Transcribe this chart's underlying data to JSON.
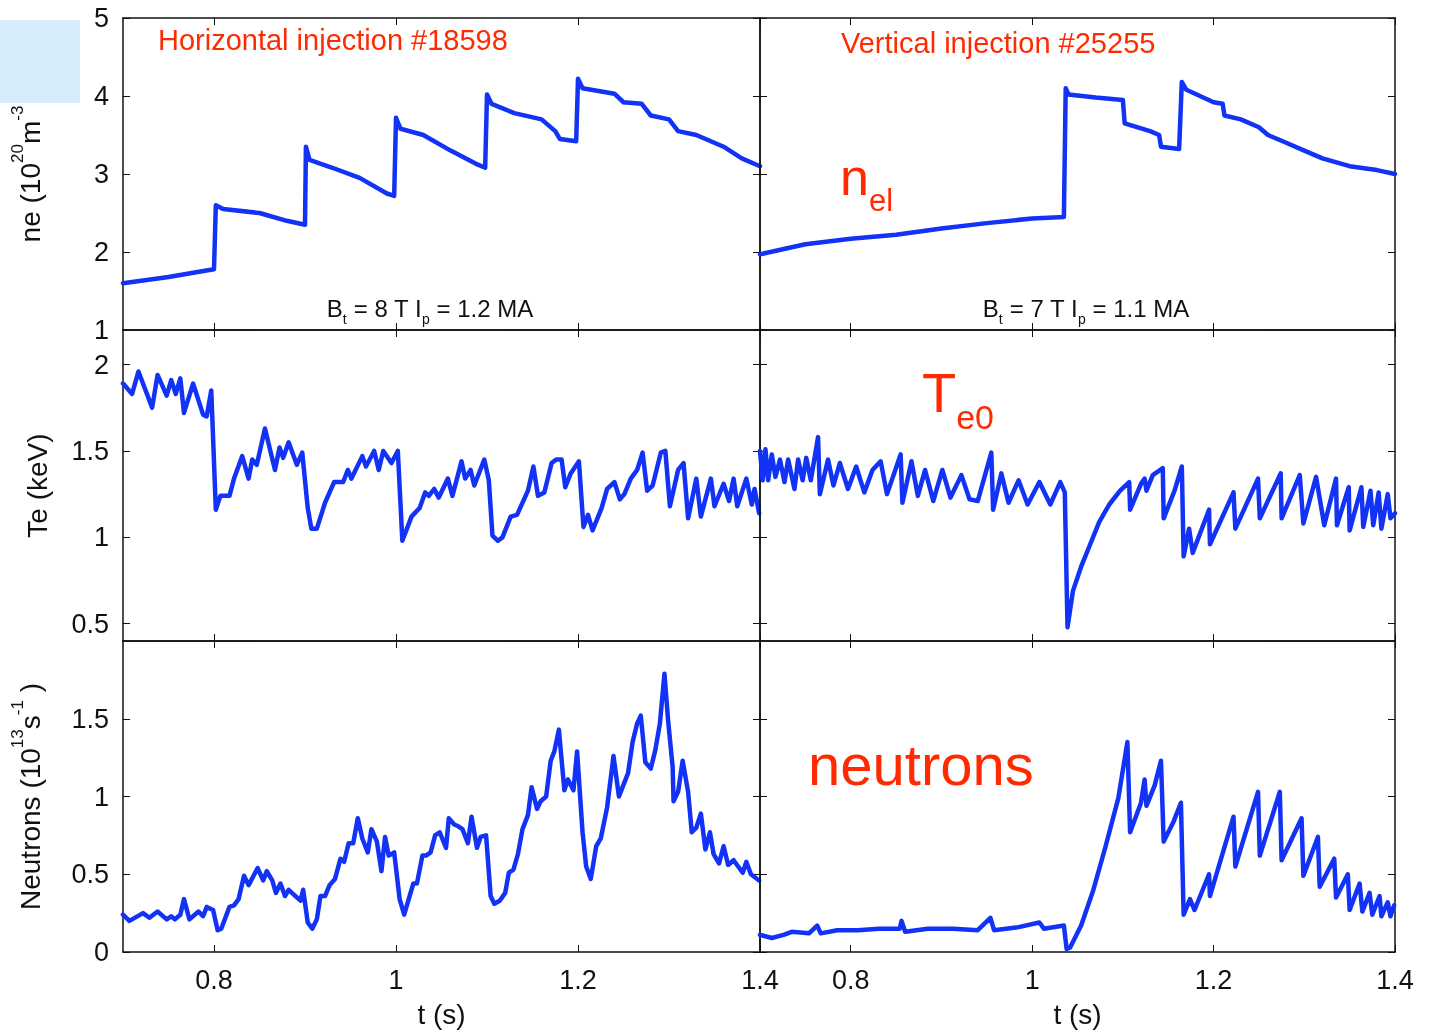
{
  "chart_data": [
    {
      "type": "line",
      "title": "Horizontal injection #18598",
      "ylabel": "ne (10$^{20}$m$^{-3}$",
      "annotations": [
        "B$_{t}$ = 8 T I$_{p}$ = 1.2 MA"
      ],
      "xlim": [
        0.7,
        1.4
      ],
      "xticks": [
        0.8,
        1,
        1.2,
        1.4
      ],
      "ylim": [
        1,
        5
      ],
      "yticks": [
        1,
        2,
        3,
        4,
        5
      ],
      "tick_labels": "y",
      "marker": "none",
      "line_style": "solid",
      "series": [
        {
          "color": "#1232f5",
          "x": [
            0.7,
            0.75,
            0.79,
            0.8,
            0.802,
            0.81,
            0.85,
            0.88,
            0.9,
            0.901,
            0.905,
            0.93,
            0.96,
            0.99,
            0.998,
            1.0,
            1.005,
            1.03,
            1.06,
            1.09,
            1.098,
            1.1,
            1.105,
            1.13,
            1.16,
            1.175,
            1.18,
            1.198,
            1.2,
            1.205,
            1.24,
            1.25,
            1.27,
            1.28,
            1.3,
            1.31,
            1.33,
            1.36,
            1.38,
            1.4
          ],
          "values": [
            1.6,
            1.68,
            1.76,
            1.78,
            2.6,
            2.55,
            2.5,
            2.4,
            2.35,
            3.35,
            3.18,
            3.08,
            2.95,
            2.75,
            2.72,
            3.72,
            3.58,
            3.5,
            3.3,
            3.12,
            3.08,
            4.02,
            3.9,
            3.78,
            3.7,
            3.55,
            3.45,
            3.42,
            4.22,
            4.1,
            4.03,
            3.92,
            3.9,
            3.75,
            3.7,
            3.55,
            3.5,
            3.35,
            3.2,
            3.1
          ]
        }
      ]
    },
    {
      "type": "line",
      "title": "Vertical injection #25255",
      "annotations": [
        "n$_{el}$",
        "B$_{t}$ = 7 T I$_{p}$ = 1.1 MA"
      ],
      "xlim": [
        0.7,
        1.4
      ],
      "xticks": [
        0.8,
        1,
        1.2,
        1.4
      ],
      "ylim": [
        1,
        5
      ],
      "yticks": [
        1,
        2,
        3,
        4,
        5
      ],
      "tick_labels": false,
      "marker": "none",
      "line_style": "solid",
      "series": [
        {
          "color": "#1232f5",
          "x": [
            0.7,
            0.75,
            0.8,
            0.85,
            0.9,
            0.95,
            1.0,
            1.035,
            1.037,
            1.04,
            1.07,
            1.1,
            1.102,
            1.13,
            1.14,
            1.142,
            1.162,
            1.165,
            1.17,
            1.2,
            1.21,
            1.212,
            1.23,
            1.25,
            1.26,
            1.28,
            1.3,
            1.32,
            1.35,
            1.38,
            1.4
          ],
          "values": [
            1.97,
            2.1,
            2.17,
            2.22,
            2.3,
            2.37,
            2.43,
            2.45,
            4.1,
            4.02,
            3.98,
            3.95,
            3.65,
            3.55,
            3.5,
            3.35,
            3.32,
            4.18,
            4.08,
            3.92,
            3.9,
            3.75,
            3.7,
            3.6,
            3.5,
            3.4,
            3.3,
            3.2,
            3.1,
            3.05,
            3.0
          ]
        }
      ]
    },
    {
      "type": "line",
      "ylabel": "Te (keV)",
      "xlim": [
        0.7,
        1.4
      ],
      "xticks": [
        0.8,
        1,
        1.2,
        1.4
      ],
      "ylim": [
        0.4,
        2.2
      ],
      "yticks": [
        0.5,
        1,
        1.5,
        2
      ],
      "tick_labels": "y",
      "marker": "none",
      "line_style": "solid",
      "series": [
        {
          "color": "#1232f5",
          "x": [
            0.7,
            0.71,
            0.717,
            0.732,
            0.738,
            0.748,
            0.753,
            0.758,
            0.763,
            0.767,
            0.777,
            0.788,
            0.792,
            0.797,
            0.802,
            0.807,
            0.817,
            0.822,
            0.831,
            0.838,
            0.842,
            0.847,
            0.856,
            0.867,
            0.872,
            0.876,
            0.882,
            0.891,
            0.897,
            0.903,
            0.907,
            0.913,
            0.922,
            0.932,
            0.942,
            0.947,
            0.951,
            0.963,
            0.967,
            0.976,
            0.981,
            0.986,
            0.995,
            1.002,
            1.007,
            1.017,
            1.026,
            1.032,
            1.036,
            1.042,
            1.047,
            1.057,
            1.062,
            1.072,
            1.076,
            1.082,
            1.086,
            1.097,
            1.102,
            1.106,
            1.112,
            1.117,
            1.126,
            1.133,
            1.145,
            1.151,
            1.156,
            1.163,
            1.171,
            1.176,
            1.182,
            1.186,
            1.192,
            1.201,
            1.206,
            1.211,
            1.216,
            1.226,
            1.232,
            1.24,
            1.246,
            1.251,
            1.258,
            1.265,
            1.271,
            1.276,
            1.282,
            1.291,
            1.296,
            1.301,
            1.31,
            1.316,
            1.321,
            1.33,
            1.335,
            1.346,
            1.35,
            1.36,
            1.366,
            1.371,
            1.375,
            1.385,
            1.391,
            1.394,
            1.399
          ],
          "values": [
            1.89,
            1.83,
            1.96,
            1.75,
            1.94,
            1.82,
            1.91,
            1.83,
            1.92,
            1.72,
            1.89,
            1.71,
            1.7,
            1.85,
            1.16,
            1.24,
            1.24,
            1.34,
            1.47,
            1.34,
            1.45,
            1.42,
            1.63,
            1.39,
            1.52,
            1.46,
            1.55,
            1.42,
            1.49,
            1.17,
            1.05,
            1.05,
            1.2,
            1.32,
            1.32,
            1.39,
            1.34,
            1.47,
            1.41,
            1.5,
            1.39,
            1.5,
            1.43,
            1.5,
            0.98,
            1.12,
            1.17,
            1.26,
            1.24,
            1.28,
            1.23,
            1.34,
            1.24,
            1.44,
            1.34,
            1.39,
            1.3,
            1.45,
            1.33,
            1.01,
            0.98,
            1.0,
            1.12,
            1.13,
            1.27,
            1.41,
            1.24,
            1.26,
            1.43,
            1.45,
            1.45,
            1.29,
            1.37,
            1.44,
            1.06,
            1.13,
            1.04,
            1.17,
            1.28,
            1.32,
            1.22,
            1.25,
            1.34,
            1.39,
            1.49,
            1.27,
            1.3,
            1.49,
            1.5,
            1.18,
            1.39,
            1.43,
            1.11,
            1.34,
            1.12,
            1.34,
            1.18,
            1.31,
            1.21,
            1.34,
            1.18,
            1.34,
            1.19,
            1.28,
            1.14
          ]
        }
      ]
    },
    {
      "type": "line",
      "annotations": [
        "T$_{e0}$"
      ],
      "xlim": [
        0.7,
        1.4
      ],
      "xticks": [
        0.8,
        1,
        1.2,
        1.4
      ],
      "ylim": [
        0.4,
        2.2
      ],
      "yticks": [
        0.5,
        1,
        1.5,
        2
      ],
      "tick_labels": false,
      "marker": "none",
      "line_style": "solid",
      "series": [
        {
          "color": "#1232f5",
          "x": [
            0.7,
            0.703,
            0.706,
            0.709,
            0.713,
            0.717,
            0.722,
            0.727,
            0.731,
            0.738,
            0.742,
            0.747,
            0.751,
            0.756,
            0.764,
            0.766,
            0.775,
            0.781,
            0.788,
            0.797,
            0.806,
            0.815,
            0.824,
            0.833,
            0.84,
            0.855,
            0.857,
            0.867,
            0.874,
            0.882,
            0.891,
            0.901,
            0.91,
            0.922,
            0.931,
            0.94,
            0.955,
            0.957,
            0.966,
            0.974,
            0.985,
            0.995,
            1.008,
            1.02,
            1.031,
            1.036,
            1.039,
            1.045,
            1.054,
            1.064,
            1.074,
            1.085,
            1.097,
            1.107,
            1.108,
            1.12,
            1.124,
            1.126,
            1.133,
            1.144,
            1.145,
            1.157,
            1.165,
            1.167,
            1.173,
            1.177,
            1.195,
            1.196,
            1.222,
            1.224,
            1.249,
            1.251,
            1.274,
            1.275,
            1.295,
            1.299,
            1.313,
            1.322,
            1.335,
            1.336,
            1.349,
            1.35,
            1.363,
            1.365,
            1.373,
            1.376,
            1.382,
            1.385,
            1.392,
            1.395,
            1.4
          ],
          "values": [
            1.5,
            1.33,
            1.51,
            1.33,
            1.48,
            1.35,
            1.45,
            1.32,
            1.45,
            1.28,
            1.45,
            1.33,
            1.46,
            1.33,
            1.58,
            1.25,
            1.45,
            1.3,
            1.43,
            1.28,
            1.41,
            1.26,
            1.39,
            1.44,
            1.25,
            1.48,
            1.2,
            1.44,
            1.24,
            1.39,
            1.21,
            1.39,
            1.23,
            1.36,
            1.22,
            1.21,
            1.49,
            1.16,
            1.37,
            1.2,
            1.33,
            1.19,
            1.32,
            1.19,
            1.32,
            1.26,
            0.48,
            0.69,
            0.83,
            0.96,
            1.09,
            1.19,
            1.27,
            1.32,
            1.16,
            1.31,
            1.34,
            1.27,
            1.36,
            1.4,
            1.11,
            1.27,
            1.41,
            0.89,
            1.05,
            0.91,
            1.16,
            0.96,
            1.26,
            1.05,
            1.34,
            1.11,
            1.37,
            1.11,
            1.36,
            1.08,
            1.35,
            1.07,
            1.34,
            1.07,
            1.29,
            1.04,
            1.29,
            1.06,
            1.27,
            1.07,
            1.26,
            1.05,
            1.25,
            1.11,
            1.14
          ]
        }
      ]
    },
    {
      "type": "line",
      "xlabel": "t (s)",
      "ylabel": "Neutrons (10$^{13}$s$^{-1}$ )",
      "xlim": [
        0.7,
        1.4
      ],
      "xticks": [
        0.8,
        1,
        1.2,
        1.4
      ],
      "ylim": [
        0,
        2
      ],
      "yticks": [
        0,
        0.5,
        1,
        1.5
      ],
      "marker": "none",
      "line_style": "solid",
      "series": [
        {
          "color": "#1232f5",
          "x": [
            0.7,
            0.707,
            0.722,
            0.729,
            0.738,
            0.748,
            0.753,
            0.757,
            0.763,
            0.767,
            0.773,
            0.783,
            0.788,
            0.792,
            0.799,
            0.804,
            0.808,
            0.817,
            0.822,
            0.827,
            0.833,
            0.838,
            0.848,
            0.854,
            0.858,
            0.864,
            0.868,
            0.873,
            0.878,
            0.882,
            0.895,
            0.898,
            0.903,
            0.908,
            0.913,
            0.917,
            0.922,
            0.927,
            0.933,
            0.939,
            0.943,
            0.948,
            0.953,
            0.958,
            0.963,
            0.969,
            0.973,
            0.979,
            0.984,
            0.988,
            0.992,
            0.998,
            1.004,
            1.009,
            1.014,
            1.019,
            1.023,
            1.029,
            1.033,
            1.038,
            1.043,
            1.048,
            1.055,
            1.058,
            1.064,
            1.068,
            1.073,
            1.079,
            1.083,
            1.089,
            1.093,
            1.099,
            1.104,
            1.108,
            1.114,
            1.12,
            1.124,
            1.129,
            1.134,
            1.139,
            1.145,
            1.149,
            1.155,
            1.159,
            1.165,
            1.17,
            1.174,
            1.179,
            1.185,
            1.189,
            1.195,
            1.199,
            1.205,
            1.209,
            1.214,
            1.22,
            1.225,
            1.232,
            1.239,
            1.245,
            1.249,
            1.255,
            1.26,
            1.265,
            1.269,
            1.274,
            1.28,
            1.285,
            1.29,
            1.295,
            1.299,
            1.304,
            1.305,
            1.31,
            1.315,
            1.321,
            1.325,
            1.33,
            1.335,
            1.34,
            1.345,
            1.349,
            1.355,
            1.36,
            1.365,
            1.371,
            1.376,
            1.381,
            1.385,
            1.39,
            1.399
          ],
          "values": [
            0.24,
            0.2,
            0.25,
            0.22,
            0.26,
            0.21,
            0.23,
            0.21,
            0.24,
            0.34,
            0.21,
            0.26,
            0.23,
            0.29,
            0.27,
            0.14,
            0.15,
            0.29,
            0.3,
            0.34,
            0.49,
            0.43,
            0.54,
            0.46,
            0.52,
            0.46,
            0.38,
            0.44,
            0.36,
            0.4,
            0.33,
            0.4,
            0.19,
            0.15,
            0.21,
            0.36,
            0.36,
            0.43,
            0.47,
            0.6,
            0.58,
            0.7,
            0.7,
            0.86,
            0.73,
            0.64,
            0.79,
            0.71,
            0.52,
            0.74,
            0.62,
            0.64,
            0.34,
            0.24,
            0.34,
            0.44,
            0.44,
            0.62,
            0.62,
            0.64,
            0.75,
            0.77,
            0.67,
            0.86,
            0.82,
            0.81,
            0.79,
            0.7,
            0.87,
            0.67,
            0.74,
            0.75,
            0.36,
            0.31,
            0.33,
            0.38,
            0.51,
            0.53,
            0.63,
            0.79,
            0.88,
            1.06,
            0.92,
            0.97,
            1.0,
            1.23,
            1.29,
            1.43,
            1.04,
            1.11,
            1.04,
            1.29,
            0.77,
            0.55,
            0.47,
            0.68,
            0.73,
            0.93,
            1.26,
            1.0,
            1.06,
            1.15,
            1.35,
            1.47,
            1.52,
            1.22,
            1.18,
            1.3,
            1.47,
            1.79,
            1.49,
            1.19,
            0.97,
            1.03,
            1.23,
            1.03,
            0.77,
            0.8,
            0.89,
            0.66,
            0.77,
            0.63,
            0.57,
            0.68,
            0.56,
            0.59,
            0.55,
            0.51,
            0.58,
            0.5,
            0.46
          ]
        }
      ]
    },
    {
      "type": "line",
      "xlabel": "t (s)",
      "annotations": [
        "neutrons"
      ],
      "xlim": [
        0.7,
        1.4
      ],
      "xticks": [
        0.8,
        1,
        1.2,
        1.4
      ],
      "ylim": [
        0,
        2
      ],
      "yticks": [
        0,
        0.5,
        1,
        1.5
      ],
      "tick_labels": "x",
      "marker": "none",
      "line_style": "solid",
      "series": [
        {
          "color": "#1232f5",
          "x": [
            0.7,
            0.713,
            0.726,
            0.735,
            0.754,
            0.763,
            0.767,
            0.785,
            0.808,
            0.831,
            0.854,
            0.856,
            0.86,
            0.885,
            0.913,
            0.94,
            0.954,
            0.958,
            0.985,
            1.008,
            1.013,
            1.035,
            1.038,
            1.042,
            1.054,
            1.067,
            1.081,
            1.095,
            1.105,
            1.108,
            1.12,
            1.124,
            1.126,
            1.135,
            1.142,
            1.145,
            1.156,
            1.164,
            1.167,
            1.174,
            1.179,
            1.195,
            1.196,
            1.222,
            1.224,
            1.249,
            1.251,
            1.273,
            1.275,
            1.297,
            1.299,
            1.315,
            1.317,
            1.333,
            1.335,
            1.348,
            1.35,
            1.361,
            1.364,
            1.372,
            1.375,
            1.383,
            1.385,
            1.392,
            1.395,
            1.399
          ],
          "values": [
            0.11,
            0.09,
            0.11,
            0.13,
            0.12,
            0.17,
            0.12,
            0.14,
            0.14,
            0.15,
            0.15,
            0.2,
            0.13,
            0.15,
            0.15,
            0.14,
            0.22,
            0.14,
            0.16,
            0.19,
            0.15,
            0.17,
            0.02,
            0.03,
            0.17,
            0.39,
            0.68,
            0.99,
            1.35,
            0.77,
            0.96,
            1.11,
            0.94,
            1.07,
            1.23,
            0.71,
            0.84,
            0.96,
            0.24,
            0.34,
            0.27,
            0.5,
            0.36,
            0.87,
            0.55,
            1.03,
            0.62,
            1.03,
            0.59,
            0.86,
            0.49,
            0.74,
            0.42,
            0.6,
            0.35,
            0.5,
            0.27,
            0.44,
            0.26,
            0.38,
            0.24,
            0.36,
            0.23,
            0.32,
            0.23,
            0.3
          ]
        }
      ]
    }
  ]
}
